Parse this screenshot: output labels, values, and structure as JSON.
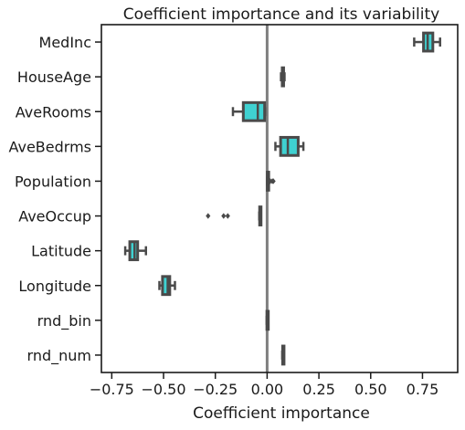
{
  "chart_data": {
    "type": "boxplot",
    "orientation": "horizontal",
    "title": "Coefficient importance and its variability",
    "xlabel": "Coefficient importance",
    "ylabel": "",
    "xlim": [
      -0.8,
      0.92
    ],
    "xticks": [
      -0.75,
      -0.5,
      -0.25,
      0.0,
      0.25,
      0.5,
      0.75
    ],
    "xtick_labels": [
      "−0.75",
      "−0.50",
      "−0.25",
      "0.00",
      "0.25",
      "0.50",
      "0.75"
    ],
    "reference_line": 0.0,
    "box_color": "#3fd1d1",
    "edge_color": "#4a4a4a",
    "ref_line_color": "#7f7f7f",
    "categories": [
      "MedInc",
      "HouseAge",
      "AveRooms",
      "AveBedrms",
      "Population",
      "AveOccup",
      "Latitude",
      "Longitude",
      "rnd_bin",
      "rnd_num"
    ],
    "boxes": [
      {
        "name": "MedInc",
        "whislo": 0.71,
        "q1": 0.755,
        "med": 0.775,
        "q3": 0.8,
        "whishi": 0.835,
        "fliers": []
      },
      {
        "name": "HouseAge",
        "whislo": 0.067,
        "q1": 0.073,
        "med": 0.076,
        "q3": 0.079,
        "whishi": 0.084,
        "fliers": []
      },
      {
        "name": "AveRooms",
        "whislo": -0.165,
        "q1": -0.115,
        "med": -0.045,
        "q3": -0.012,
        "whishi": -0.01,
        "fliers": []
      },
      {
        "name": "AveBedrms",
        "whislo": 0.04,
        "q1": 0.065,
        "med": 0.1,
        "q3": 0.15,
        "whishi": 0.175,
        "fliers": []
      },
      {
        "name": "Population",
        "whislo": 0.0,
        "q1": 0.001,
        "med": 0.002,
        "q3": 0.004,
        "whishi": 0.006,
        "fliers": [
          0.015,
          0.025,
          0.03
        ]
      },
      {
        "name": "AveOccup",
        "whislo": -0.038,
        "q1": -0.036,
        "med": -0.034,
        "q3": -0.032,
        "whishi": -0.03,
        "fliers": [
          -0.285,
          -0.21,
          -0.19
        ]
      },
      {
        "name": "Latitude",
        "whislo": -0.685,
        "q1": -0.663,
        "med": -0.64,
        "q3": -0.625,
        "whishi": -0.585,
        "fliers": []
      },
      {
        "name": "Longitude",
        "whislo": -0.52,
        "q1": -0.505,
        "med": -0.48,
        "q3": -0.47,
        "whishi": -0.445,
        "fliers": []
      },
      {
        "name": "rnd_bin",
        "whislo": -0.002,
        "q1": -0.001,
        "med": 0.0,
        "q3": 0.001,
        "whishi": 0.002,
        "fliers": []
      },
      {
        "name": "rnd_num",
        "whislo": 0.073,
        "q1": 0.075,
        "med": 0.077,
        "q3": 0.079,
        "whishi": 0.081,
        "fliers": []
      }
    ]
  }
}
